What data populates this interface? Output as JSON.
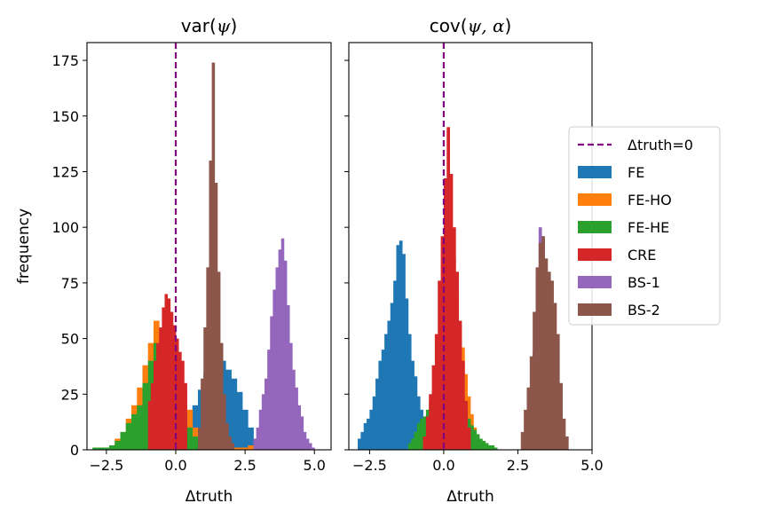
{
  "colors": {
    "FE": "#1f77b4",
    "FE-HO": "#ff7f0e",
    "FE-HE": "#2ca02c",
    "CRE": "#d62728",
    "BS-1": "#9467bd",
    "BS-2": "#8c564b",
    "zero_line": "#800080"
  },
  "chart_data": [
    {
      "type": "histogram",
      "title_main": "var(",
      "title_sym": "ψ",
      "title_end": ")",
      "xlabel": "Δtruth",
      "ylabel": "frequency",
      "xlim": [
        -3.2,
        5.6
      ],
      "ylim": [
        0,
        183
      ],
      "xticks": [
        -2.5,
        0.0,
        2.5,
        5.0
      ],
      "xtick_labels": [
        "−2.5",
        "0.0",
        "2.5",
        "5.0"
      ],
      "yticks": [
        0,
        25,
        50,
        75,
        100,
        125,
        150,
        175
      ],
      "ytick_labels": [
        "0",
        "25",
        "50",
        "75",
        "100",
        "125",
        "150",
        "175"
      ],
      "reference_line_x": 0,
      "series": [
        {
          "name": "FE",
          "start": 0.2,
          "width": 0.2,
          "counts": [
            3,
            12,
            20,
            27,
            35,
            40,
            42,
            40,
            36,
            32,
            26,
            18,
            10,
            5
          ]
        },
        {
          "name": "FE-HO",
          "start": -2.8,
          "width": 0.2,
          "counts": [
            1,
            1,
            2,
            5,
            8,
            14,
            20,
            28,
            38,
            48,
            58,
            52,
            44,
            37,
            30,
            25,
            18,
            10,
            6,
            3,
            2,
            1,
            1,
            1,
            1,
            1,
            1,
            2,
            3,
            2
          ]
        },
        {
          "name": "FE-HE",
          "start": -3.0,
          "width": 0.2,
          "counts": [
            1,
            1,
            1,
            2,
            4,
            8,
            12,
            16,
            20,
            30,
            40,
            48,
            45,
            40,
            33,
            24,
            16,
            10,
            6,
            3,
            2,
            1,
            1,
            1
          ]
        },
        {
          "name": "CRE",
          "start": -1.0,
          "width": 0.1,
          "counts": [
            22,
            30,
            40,
            48,
            55,
            64,
            70,
            68,
            62,
            56,
            50,
            44,
            40,
            30
          ]
        },
        {
          "name": "BS-1",
          "start": 2.8,
          "width": 0.1,
          "counts": [
            5,
            10,
            18,
            25,
            32,
            45,
            60,
            72,
            82,
            90,
            95,
            85,
            65,
            48,
            36,
            28,
            20,
            15,
            8,
            5,
            3,
            1
          ]
        },
        {
          "name": "BS-2",
          "start": 0.8,
          "width": 0.1,
          "counts": [
            10,
            32,
            55,
            82,
            130,
            174,
            120,
            80,
            48,
            25,
            12,
            6,
            3
          ]
        }
      ]
    },
    {
      "type": "histogram",
      "title_main": "cov(",
      "title_sym": "ψ, α",
      "title_end": ")",
      "xlabel": "Δtruth",
      "xlim": [
        -3.2,
        5.0
      ],
      "ylim": [
        0,
        183
      ],
      "xticks": [
        -2.5,
        0.0,
        2.5,
        5.0
      ],
      "xtick_labels": [
        "−2.5",
        "0.0",
        "2.5",
        "5.0"
      ],
      "yticks": [
        0,
        25,
        50,
        75,
        100,
        125,
        150,
        175
      ],
      "reference_line_x": 0,
      "series": [
        {
          "name": "FE",
          "start": -2.9,
          "width": 0.1,
          "counts": [
            5,
            8,
            12,
            14,
            18,
            24,
            32,
            40,
            45,
            52,
            58,
            66,
            76,
            92,
            94,
            88,
            68,
            52,
            40,
            33,
            24,
            18,
            10,
            5,
            3,
            1
          ]
        },
        {
          "name": "FE-HO",
          "start": -1.0,
          "width": 0.1,
          "counts": [
            2,
            3,
            5,
            8,
            12,
            16,
            22,
            30,
            40,
            55,
            68,
            86,
            90,
            86,
            70,
            56,
            46,
            34,
            24,
            16,
            10,
            6,
            4,
            2,
            1,
            1
          ]
        },
        {
          "name": "FE-HE",
          "start": -1.2,
          "width": 0.1,
          "counts": [
            3,
            5,
            8,
            12,
            14,
            15,
            18,
            22,
            28,
            34,
            38,
            45,
            50,
            54,
            50,
            40,
            34,
            28,
            22,
            18,
            14,
            11,
            9,
            7,
            5,
            4,
            3,
            2,
            2,
            1
          ]
        },
        {
          "name": "CRE",
          "start": -0.7,
          "width": 0.1,
          "counts": [
            6,
            15,
            25,
            38,
            52,
            76,
            96,
            122,
            145,
            124,
            100,
            80,
            58,
            40,
            22,
            10
          ]
        },
        {
          "name": "BS-1",
          "start": 2.9,
          "width": 0.1,
          "counts": [
            20,
            45,
            78,
            100,
            95,
            70,
            55,
            42,
            28,
            14,
            6,
            2
          ]
        },
        {
          "name": "BS-2",
          "start": 2.6,
          "width": 0.1,
          "counts": [
            8,
            18,
            28,
            42,
            62,
            82,
            93,
            96,
            86,
            80,
            76,
            66,
            52,
            30,
            14,
            6
          ]
        }
      ]
    }
  ],
  "legend": {
    "entries": [
      "Δtruth=0",
      "FE",
      "FE-HO",
      "FE-HE",
      "CRE",
      "BS-1",
      "BS-2"
    ]
  }
}
